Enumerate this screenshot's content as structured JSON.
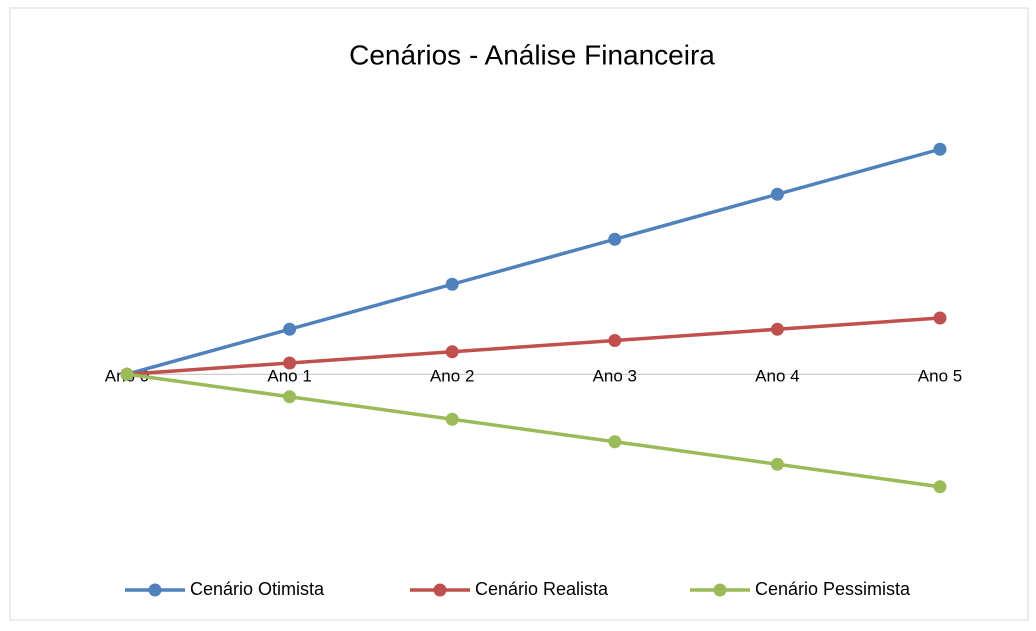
{
  "chart_data": {
    "type": "line",
    "title": "Cenários - Análise Financeira",
    "categories": [
      "Ano 0",
      "Ano 1",
      "Ano 2",
      "Ano 3",
      "Ano 4",
      "Ano 5"
    ],
    "series": [
      {
        "name": "Cenário Otimista",
        "color": "#4f81bd",
        "values": [
          0,
          4,
          8,
          12,
          16,
          20
        ]
      },
      {
        "name": "Cenário Realista",
        "color": "#c0504d",
        "values": [
          0,
          1,
          2,
          3,
          4,
          5
        ]
      },
      {
        "name": "Cenário Pessimista",
        "color": "#9bbb59",
        "values": [
          0,
          -2,
          -4,
          -6,
          -8,
          -10
        ]
      }
    ],
    "ylim": [
      -15,
      25
    ],
    "legend": "bottom"
  }
}
